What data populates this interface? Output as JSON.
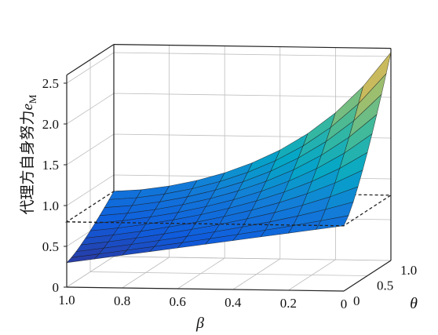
{
  "chart_data": {
    "type": "surface3d",
    "zlabel": "代理方自身努力",
    "zlabel_symbol": "e",
    "zlabel_subscript": "M",
    "xlabel": "β",
    "ylabel": "θ",
    "zlim": [
      0,
      2.6
    ],
    "z_ticks": [
      "0",
      "0.5",
      "1.0",
      "1.5",
      "2.0",
      "2.5"
    ],
    "x_ticks": [
      "1.0",
      "0.8",
      "0.6",
      "0.4",
      "0.2",
      "0"
    ],
    "y_ticks": [
      "0",
      "0.5",
      "1.0"
    ],
    "grid": true,
    "colormap": "parula",
    "reference_plane_z": 0.8,
    "surface": {
      "beta": [
        1.0,
        0.9,
        0.8,
        0.7,
        0.6,
        0.5,
        0.4,
        0.3,
        0.2,
        0.1,
        0.0
      ],
      "theta": [
        0.0,
        0.1,
        0.2,
        0.3,
        0.4,
        0.5,
        0.6,
        0.7,
        0.8,
        0.9,
        1.0
      ],
      "corners": {
        "beta1_theta0": 0.3,
        "beta1_theta1": 0.8,
        "beta0_theta0": 0.8,
        "beta0_theta1": 2.55
      }
    }
  }
}
